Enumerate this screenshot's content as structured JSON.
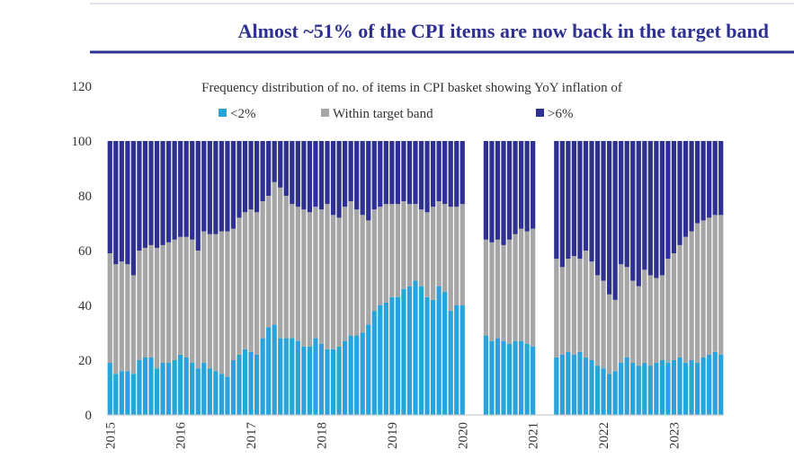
{
  "chart_data": {
    "type": "stacked-bar",
    "title": "Almost ~51% of the CPI items are now back in the target band",
    "subtitle": "Frequency distribution of no. of items in CPI basket showing YoY inflation of",
    "categories": [
      "2015",
      null,
      null,
      null,
      null,
      null,
      null,
      null,
      null,
      null,
      null,
      null,
      "2016",
      null,
      null,
      null,
      null,
      null,
      null,
      null,
      null,
      null,
      null,
      null,
      "2017",
      null,
      null,
      null,
      null,
      null,
      null,
      null,
      null,
      null,
      null,
      null,
      "2018",
      null,
      null,
      null,
      null,
      null,
      null,
      null,
      null,
      null,
      null,
      null,
      "2019",
      null,
      null,
      null,
      null,
      null,
      null,
      null,
      null,
      null,
      null,
      null,
      "2020",
      null,
      null,
      null,
      null,
      null,
      null,
      null,
      null,
      null,
      null,
      null,
      "2021",
      null,
      null,
      null,
      null,
      null,
      null,
      null,
      null,
      null,
      null,
      null,
      "2022",
      null,
      null,
      null,
      null,
      null,
      null,
      null,
      null,
      null,
      null,
      null,
      "2023",
      null,
      null,
      null,
      null,
      null,
      null,
      null,
      null
    ],
    "series": [
      {
        "name": "<2%",
        "color": "#29a3dc",
        "values": [
          19,
          15,
          16,
          16,
          15,
          20,
          21,
          21,
          17,
          19,
          19,
          20,
          22,
          21,
          19,
          17,
          19,
          17,
          16,
          15,
          14,
          20,
          22,
          24,
          23,
          22,
          28,
          32,
          33,
          28,
          28,
          28,
          27,
          25,
          25,
          28,
          26,
          24,
          24,
          25,
          27,
          29,
          29,
          30,
          33,
          38,
          40,
          41,
          43,
          43,
          46,
          47,
          49,
          47,
          43,
          42,
          47,
          45,
          38,
          40,
          40,
          null,
          null,
          null,
          29,
          27,
          28,
          27,
          26,
          27,
          27,
          26,
          25,
          null,
          null,
          null,
          21,
          22,
          23,
          22,
          23,
          21,
          20,
          18,
          17,
          15,
          16,
          19,
          21,
          19,
          18,
          19,
          18,
          19,
          20,
          19,
          20,
          21,
          19,
          20,
          19,
          21,
          22,
          23,
          22
        ]
      },
      {
        "name": "Within target band",
        "color": "#a6a6a6",
        "values": [
          40,
          40,
          40,
          39,
          36,
          40,
          40,
          41,
          44,
          43,
          44,
          44,
          43,
          44,
          45,
          43,
          48,
          49,
          50,
          52,
          53,
          48,
          50,
          50,
          52,
          52,
          50,
          48,
          52,
          55,
          52,
          49,
          49,
          50,
          49,
          48,
          49,
          53,
          49,
          47,
          49,
          49,
          46,
          43,
          38,
          37,
          36,
          36,
          34,
          34,
          32,
          30,
          28,
          28,
          31,
          34,
          31,
          32,
          38,
          36,
          37,
          null,
          null,
          null,
          35,
          36,
          36,
          35,
          38,
          39,
          41,
          41,
          43,
          null,
          null,
          null,
          36,
          32,
          34,
          36,
          34,
          39,
          36,
          33,
          32,
          29,
          26,
          36,
          33,
          30,
          29,
          34,
          33,
          31,
          31,
          38,
          39,
          41,
          46,
          47,
          51,
          50,
          50,
          50,
          51
        ]
      },
      {
        "name": ">6%",
        "color": "#2e3192",
        "values": [
          41,
          45,
          44,
          45,
          49,
          40,
          39,
          38,
          39,
          38,
          37,
          36,
          35,
          35,
          36,
          40,
          33,
          34,
          34,
          33,
          33,
          32,
          28,
          26,
          25,
          26,
          22,
          20,
          15,
          17,
          20,
          23,
          24,
          25,
          26,
          24,
          25,
          23,
          27,
          28,
          24,
          22,
          25,
          27,
          29,
          25,
          24,
          23,
          23,
          23,
          22,
          23,
          23,
          25,
          26,
          24,
          22,
          23,
          24,
          24,
          23,
          null,
          null,
          null,
          36,
          37,
          36,
          38,
          36,
          34,
          32,
          33,
          32,
          null,
          null,
          null,
          43,
          46,
          43,
          42,
          43,
          40,
          44,
          49,
          51,
          56,
          58,
          45,
          46,
          51,
          53,
          47,
          49,
          50,
          49,
          43,
          41,
          38,
          35,
          33,
          30,
          29,
          28,
          27,
          27
        ]
      }
    ],
    "ylim": [
      0,
      120
    ],
    "yticks": [
      0,
      20,
      40,
      60,
      80,
      100,
      120
    ]
  }
}
